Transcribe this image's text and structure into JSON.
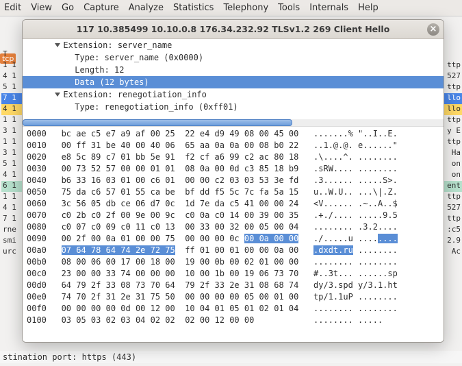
{
  "menubar": [
    "Edit",
    "View",
    "Go",
    "Capture",
    "Analyze",
    "Statistics",
    "Telephony",
    "Tools",
    "Internals",
    "Help"
  ],
  "popup": {
    "title": "117 10.385499 10.10.0.8 176.34.232.92 TLSv1.2 269 Client Hello",
    "tree": [
      {
        "indent": 6,
        "expander": true,
        "text": "Extension: server_name"
      },
      {
        "indent": 10,
        "expander": false,
        "text": "Type: server_name (0x0000)"
      },
      {
        "indent": 10,
        "expander": false,
        "text": "Length: 12"
      },
      {
        "indent": 10,
        "expander": false,
        "text": "Data (12 bytes)",
        "selected": true
      },
      {
        "indent": 6,
        "expander": true,
        "text": "Extension: renegotiation_info"
      },
      {
        "indent": 10,
        "expander": false,
        "text": "Type: renegotiation_info (0xff01)"
      }
    ],
    "hex_sel_color": "#5a8ed6",
    "hex": [
      {
        "off": "0000",
        "b": "bc ae c5 e7 a9 af 00 25  22 e4 d9 49 08 00 45 00",
        "a": ".......% \"..I..E."
      },
      {
        "off": "0010",
        "b": "00 ff 31 be 40 00 40 06  65 aa 0a 0a 00 08 b0 22",
        "a": "..1.@.@. e......\""
      },
      {
        "off": "0020",
        "b": "e8 5c 89 c7 01 bb 5e 91  f2 cf a6 99 c2 ac 80 18",
        "a": ".\\....^. ........"
      },
      {
        "off": "0030",
        "b": "00 73 52 57 00 00 01 01  08 0a 00 0d c3 85 18 b9",
        "a": ".sRW.... ........"
      },
      {
        "off": "0040",
        "b": "b6 33 16 03 01 00 c6 01  00 00 c2 03 03 53 3e fd",
        "a": ".3...... .....S>."
      },
      {
        "off": "0050",
        "b": "75 da c6 57 01 55 ca be  bf dd f5 5c 7c fa 5a 15",
        "a": "u..W.U.. ...\\|.Z."
      },
      {
        "off": "0060",
        "b": "3c 56 05 db ce 06 d7 0c  1d 7e da c5 41 00 00 24",
        "a": "<V...... .~..A..$"
      },
      {
        "off": "0070",
        "b": "c0 2b c0 2f 00 9e 00 9c  c0 0a c0 14 00 39 00 35",
        "a": ".+./.... .....9.5"
      },
      {
        "off": "0080",
        "b": "c0 07 c0 09 c0 11 c0 13  00 33 00 32 00 05 00 04",
        "a": "........ .3.2...."
      },
      {
        "off": "0090",
        "b": "00 2f 00 0a 01 00 00 75  00 00 00 0c ",
        "a": "./.....u ....",
        "tail_b": "00 0a 00 00",
        "tail_a": "...."
      },
      {
        "off": "00a0",
        "b": "07 64 78 64 74 2e 72 75",
        "mid": "  ff 01 00 01 00 00 0a 00",
        "a_lead": ".dxdt.ru",
        "a": " ........"
      },
      {
        "off": "00b0",
        "b": "08 00 06 00 17 00 18 00  19 00 0b 00 02 01 00 00",
        "a": "........ ........"
      },
      {
        "off": "00c0",
        "b": "23 00 00 33 74 00 00 00  10 00 1b 00 19 06 73 70",
        "a": "#..3t... ......sp"
      },
      {
        "off": "00d0",
        "b": "64 79 2f 33 08 73 70 64  79 2f 33 2e 31 08 68 74",
        "a": "dy/3.spd y/3.1.ht"
      },
      {
        "off": "00e0",
        "b": "74 70 2f 31 2e 31 75 50  00 00 00 00 05 00 01 00",
        "a": "tp/1.1uP ........"
      },
      {
        "off": "00f0",
        "b": "00 00 00 00 0d 00 12 00  10 04 01 05 01 02 01 04",
        "a": "........ ........"
      },
      {
        "off": "0100",
        "b": "03 05 03 02 03 04 02 02  02 00 12 00 00         ",
        "a": "........ ....."
      }
    ]
  },
  "bg_rows": [
    {
      "l": "",
      "r": "",
      "cls": ""
    },
    {
      "l": " T",
      "r": "",
      "cls": ""
    },
    {
      "l": "1 1",
      "r": "ttp",
      "cls": ""
    },
    {
      "l": "4 1",
      "r": "527",
      "cls": ""
    },
    {
      "l": "5 1",
      "r": "ttp",
      "cls": ""
    },
    {
      "l": "7 1",
      "r": "llo",
      "cls": "bg-hl-blue"
    },
    {
      "l": "4 1",
      "r": "llo",
      "cls": "bg-hl-yel"
    },
    {
      "l": "1 1",
      "r": "ttp",
      "cls": ""
    },
    {
      "l": "3 1",
      "r": "y E",
      "cls": ""
    },
    {
      "l": "1 1",
      "r": "ttp",
      "cls": ""
    },
    {
      "l": "3 1",
      "r": " Ha",
      "cls": ""
    },
    {
      "l": "5 1",
      "r": "on",
      "cls": ""
    },
    {
      "l": "4 1",
      "r": "on",
      "cls": ""
    },
    {
      "l": "6 1",
      "r": "ent",
      "cls": "bg-hl-cy"
    },
    {
      "l": "1 1",
      "r": "ttp",
      "cls": ""
    },
    {
      "l": "4 1",
      "r": "527",
      "cls": ""
    },
    {
      "l": "7 1",
      "r": "ttp",
      "cls": ""
    },
    {
      "l": "rne",
      "r": ":c5",
      "cls": ""
    },
    {
      "l": "smi",
      "r": "2.9",
      "cls": ""
    },
    {
      "l": "urc",
      "r": " Ac",
      "cls": ""
    }
  ],
  "bottom_text": "stination port: https (443)",
  "tcp_chip": "tcp"
}
